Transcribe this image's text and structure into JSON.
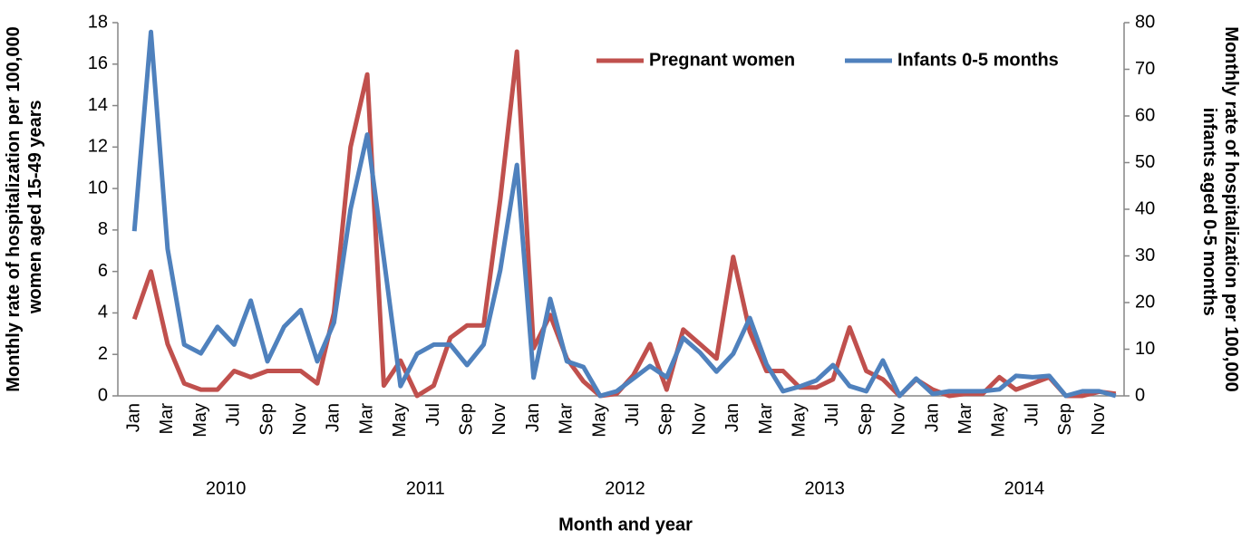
{
  "chart_data": {
    "type": "line",
    "x_label": "Month and year",
    "y_label": "Monthly rate of hospitalization per 100,000 women aged 15-49 years",
    "y2_label": "Monthly rate of hospitalization per 100,000 infants aged 0-5 months",
    "categories": [
      "Jan",
      null,
      "Mar",
      null,
      "May",
      null,
      "Jul",
      null,
      "Sep",
      null,
      "Nov",
      null,
      "Jan",
      null,
      "Mar",
      null,
      "May",
      null,
      "Jul",
      null,
      "Sep",
      null,
      "Nov",
      null,
      "Jan",
      null,
      "Mar",
      null,
      "May",
      null,
      "Jul",
      null,
      "Sep",
      null,
      "Nov",
      null,
      "Jan",
      null,
      "Mar",
      null,
      "May",
      null,
      "Jul",
      null,
      "Sep",
      null,
      "Nov",
      null,
      "Jan",
      null,
      "Mar",
      null,
      "May",
      null,
      "Jul",
      null,
      "Sep",
      null,
      "Nov",
      null
    ],
    "years": [
      "2010",
      "2011",
      "2012",
      "2013",
      "2014"
    ],
    "series": [
      {
        "name": "Pregnant women",
        "color": "#c0504d",
        "axis": "y",
        "values": [
          3.7,
          6.0,
          2.5,
          0.6,
          0.3,
          0.3,
          1.2,
          0.9,
          1.2,
          1.2,
          1.2,
          0.6,
          4.0,
          12.0,
          15.5,
          0.5,
          1.7,
          0.0,
          0.5,
          2.8,
          3.4,
          3.4,
          9.5,
          16.6,
          2.3,
          3.9,
          1.8,
          0.7,
          0.0,
          0.1,
          1.0,
          2.5,
          0.3,
          3.2,
          2.5,
          1.8,
          6.7,
          3.1,
          1.2,
          1.2,
          0.4,
          0.4,
          0.8,
          3.3,
          1.2,
          0.8,
          0.0,
          0.8,
          0.3,
          0.0,
          0.1,
          0.1,
          0.9,
          0.3,
          0.6,
          0.9,
          0.0,
          0.0,
          0.2,
          0.1
        ]
      },
      {
        "name": "Infants 0-5 months",
        "color": "#4f81bd",
        "axis": "y2",
        "values": [
          35.3,
          78,
          31.5,
          11,
          9.1,
          14.8,
          11,
          20.4,
          7.4,
          14.8,
          18.4,
          7.4,
          15.7,
          40,
          56,
          29.5,
          2.1,
          9,
          11,
          11,
          6.6,
          11,
          27,
          49.5,
          3.9,
          20.8,
          7.4,
          6.2,
          0,
          1,
          3.7,
          6.4,
          4,
          12.4,
          9.3,
          5.2,
          9,
          16.7,
          6.8,
          1,
          2,
          3.3,
          6.6,
          2.1,
          1,
          7.6,
          0,
          3.7,
          0.4,
          1,
          1,
          1,
          1.4,
          4.3,
          4,
          4.3,
          0,
          1,
          1,
          0
        ]
      }
    ],
    "ylim": [
      0,
      18
    ],
    "yticks": [
      0,
      2,
      4,
      6,
      8,
      10,
      12,
      14,
      16,
      18
    ],
    "y2lim": [
      0,
      80
    ],
    "y2ticks": [
      0,
      10,
      20,
      30,
      40,
      50,
      60,
      70,
      80
    ],
    "legend": "top-right"
  }
}
